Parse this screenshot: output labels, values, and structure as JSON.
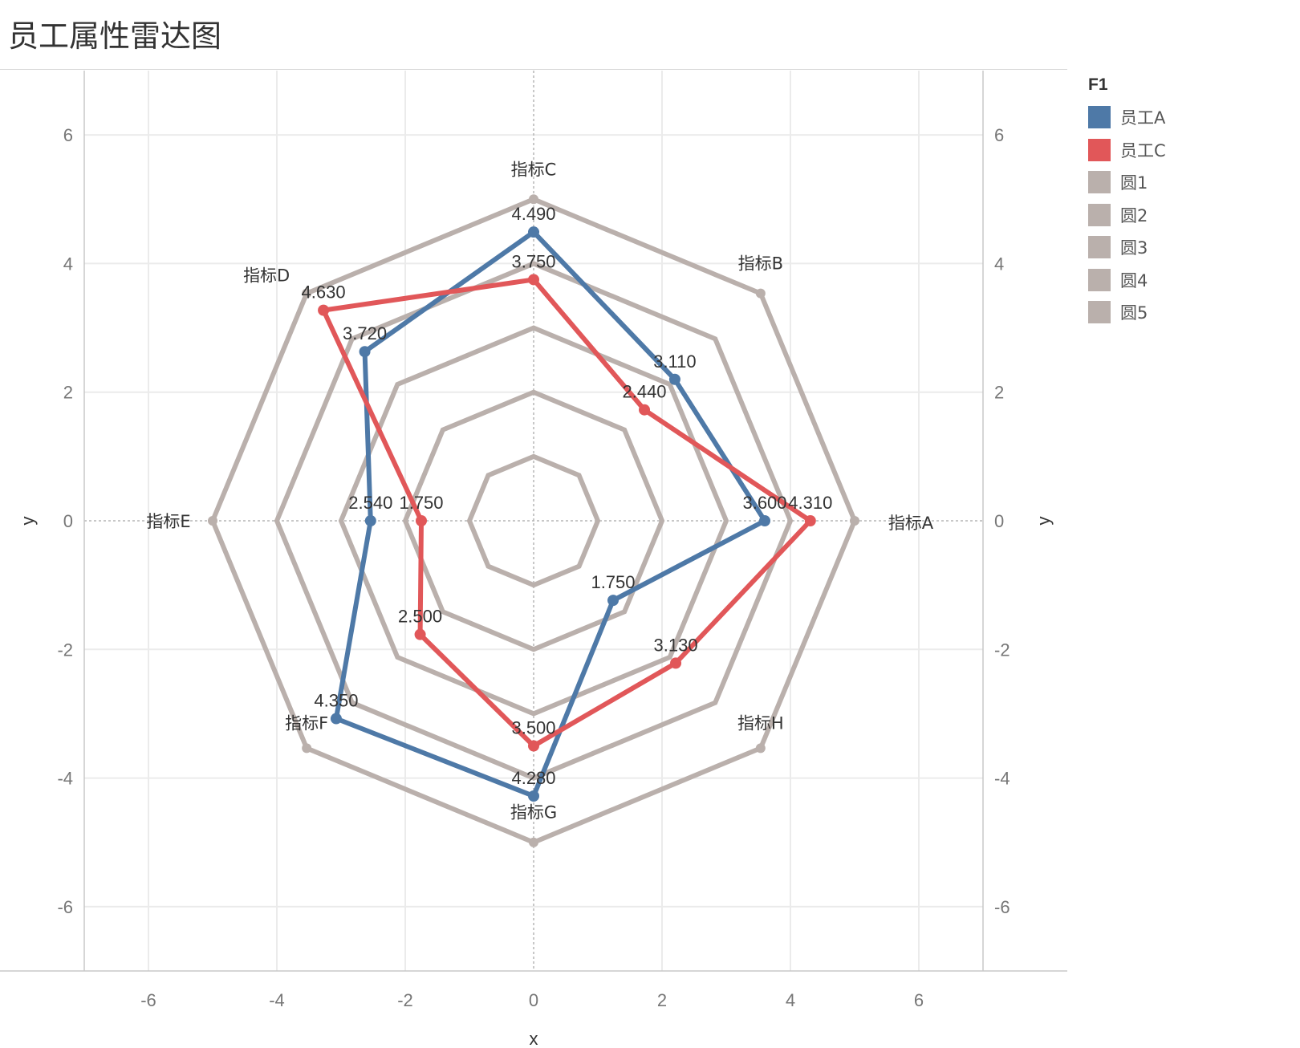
{
  "title": "员工属性雷达图",
  "chart_data": {
    "type": "radar",
    "xlabel": "x",
    "ylabel": "y",
    "xlim": [
      -7,
      7
    ],
    "ylim": [
      -7,
      7
    ],
    "x_ticks": [
      "-6",
      "-4",
      "-2",
      "0",
      "2",
      "4",
      "6"
    ],
    "y_ticks": [
      "6",
      "4",
      "2",
      "0",
      "-2",
      "-4",
      "-6"
    ],
    "grid": true,
    "legend": {
      "title": "F1",
      "position": "right",
      "items": [
        {
          "label": "员工A",
          "color": "#4e79a7"
        },
        {
          "label": "员工C",
          "color": "#e15759"
        },
        {
          "label": "圆1",
          "color": "#bab0ac"
        },
        {
          "label": "圆2",
          "color": "#bab0ac"
        },
        {
          "label": "圆3",
          "color": "#bab0ac"
        },
        {
          "label": "圆4",
          "color": "#bab0ac"
        },
        {
          "label": "圆5",
          "color": "#bab0ac"
        }
      ]
    },
    "indicators": [
      "指标A",
      "指标B",
      "指标C",
      "指标D",
      "指标E",
      "指标F",
      "指标G",
      "指标H"
    ],
    "angles_deg": [
      0,
      45,
      90,
      135,
      180,
      225,
      270,
      315
    ],
    "rings": [
      1,
      2,
      3,
      4,
      5
    ],
    "ring_color": "#bab0ac",
    "series": [
      {
        "name": "员工A",
        "color": "#4e79a7",
        "values": [
          3.6,
          3.11,
          4.49,
          3.72,
          2.54,
          4.35,
          4.28,
          1.75
        ],
        "labels": [
          "3.600",
          "3.110",
          "4.490",
          "3.720",
          "2.540",
          "4.350",
          "4.280",
          "1.750"
        ]
      },
      {
        "name": "员工C",
        "color": "#e15759",
        "values": [
          4.31,
          2.44,
          3.75,
          4.63,
          1.75,
          2.5,
          3.5,
          3.13
        ],
        "labels": [
          "4.310",
          "2.440",
          "3.750",
          "4.630",
          "1.750",
          "2.500",
          "3.500",
          "3.130"
        ]
      }
    ]
  }
}
